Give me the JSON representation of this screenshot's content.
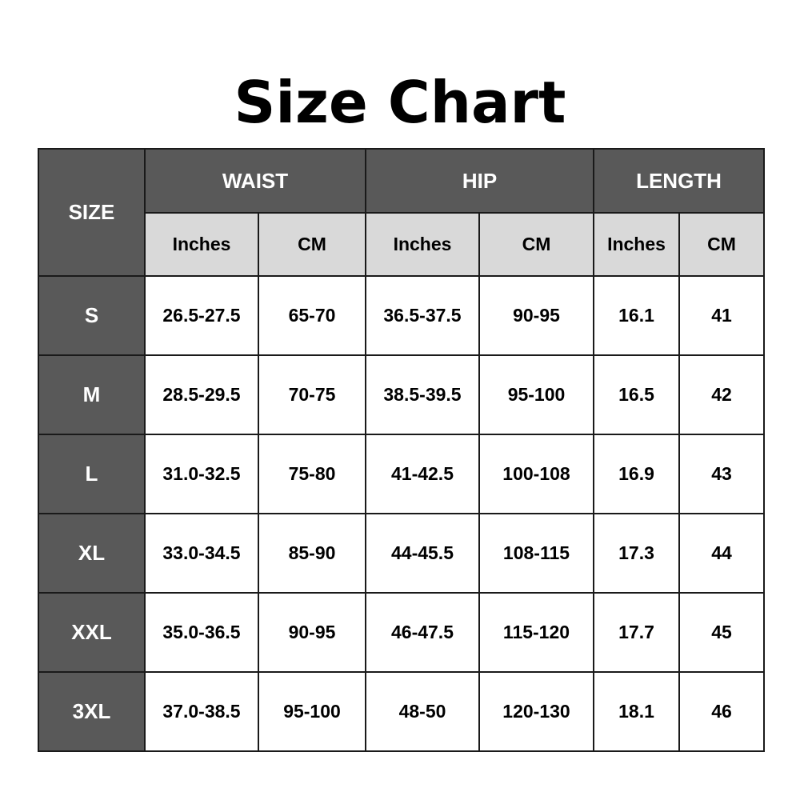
{
  "title": "Size Chart",
  "header": {
    "size": "SIZE",
    "groups": [
      "WAIST",
      "HIP",
      "LENGTH"
    ],
    "units": [
      "Inches",
      "CM",
      "Inches",
      "CM",
      "Inches",
      "CM"
    ]
  },
  "rows": [
    {
      "size": "S",
      "values": [
        "26.5-27.5",
        "65-70",
        "36.5-37.5",
        "90-95",
        "16.1",
        "41"
      ]
    },
    {
      "size": "M",
      "values": [
        "28.5-29.5",
        "70-75",
        "38.5-39.5",
        "95-100",
        "16.5",
        "42"
      ]
    },
    {
      "size": "L",
      "values": [
        "31.0-32.5",
        "75-80",
        "41-42.5",
        "100-108",
        "16.9",
        "43"
      ]
    },
    {
      "size": "XL",
      "values": [
        "33.0-34.5",
        "85-90",
        "44-45.5",
        "108-115",
        "17.3",
        "44"
      ]
    },
    {
      "size": "XXL",
      "values": [
        "35.0-36.5",
        "90-95",
        "46-47.5",
        "115-120",
        "17.7",
        "45"
      ]
    },
    {
      "size": "3XL",
      "values": [
        "37.0-38.5",
        "95-100",
        "48-50",
        "120-130",
        "18.1",
        "46"
      ]
    }
  ],
  "colors": {
    "header_dark": "#595959",
    "header_light": "#d9d9d9",
    "cell": "#ffffff"
  }
}
